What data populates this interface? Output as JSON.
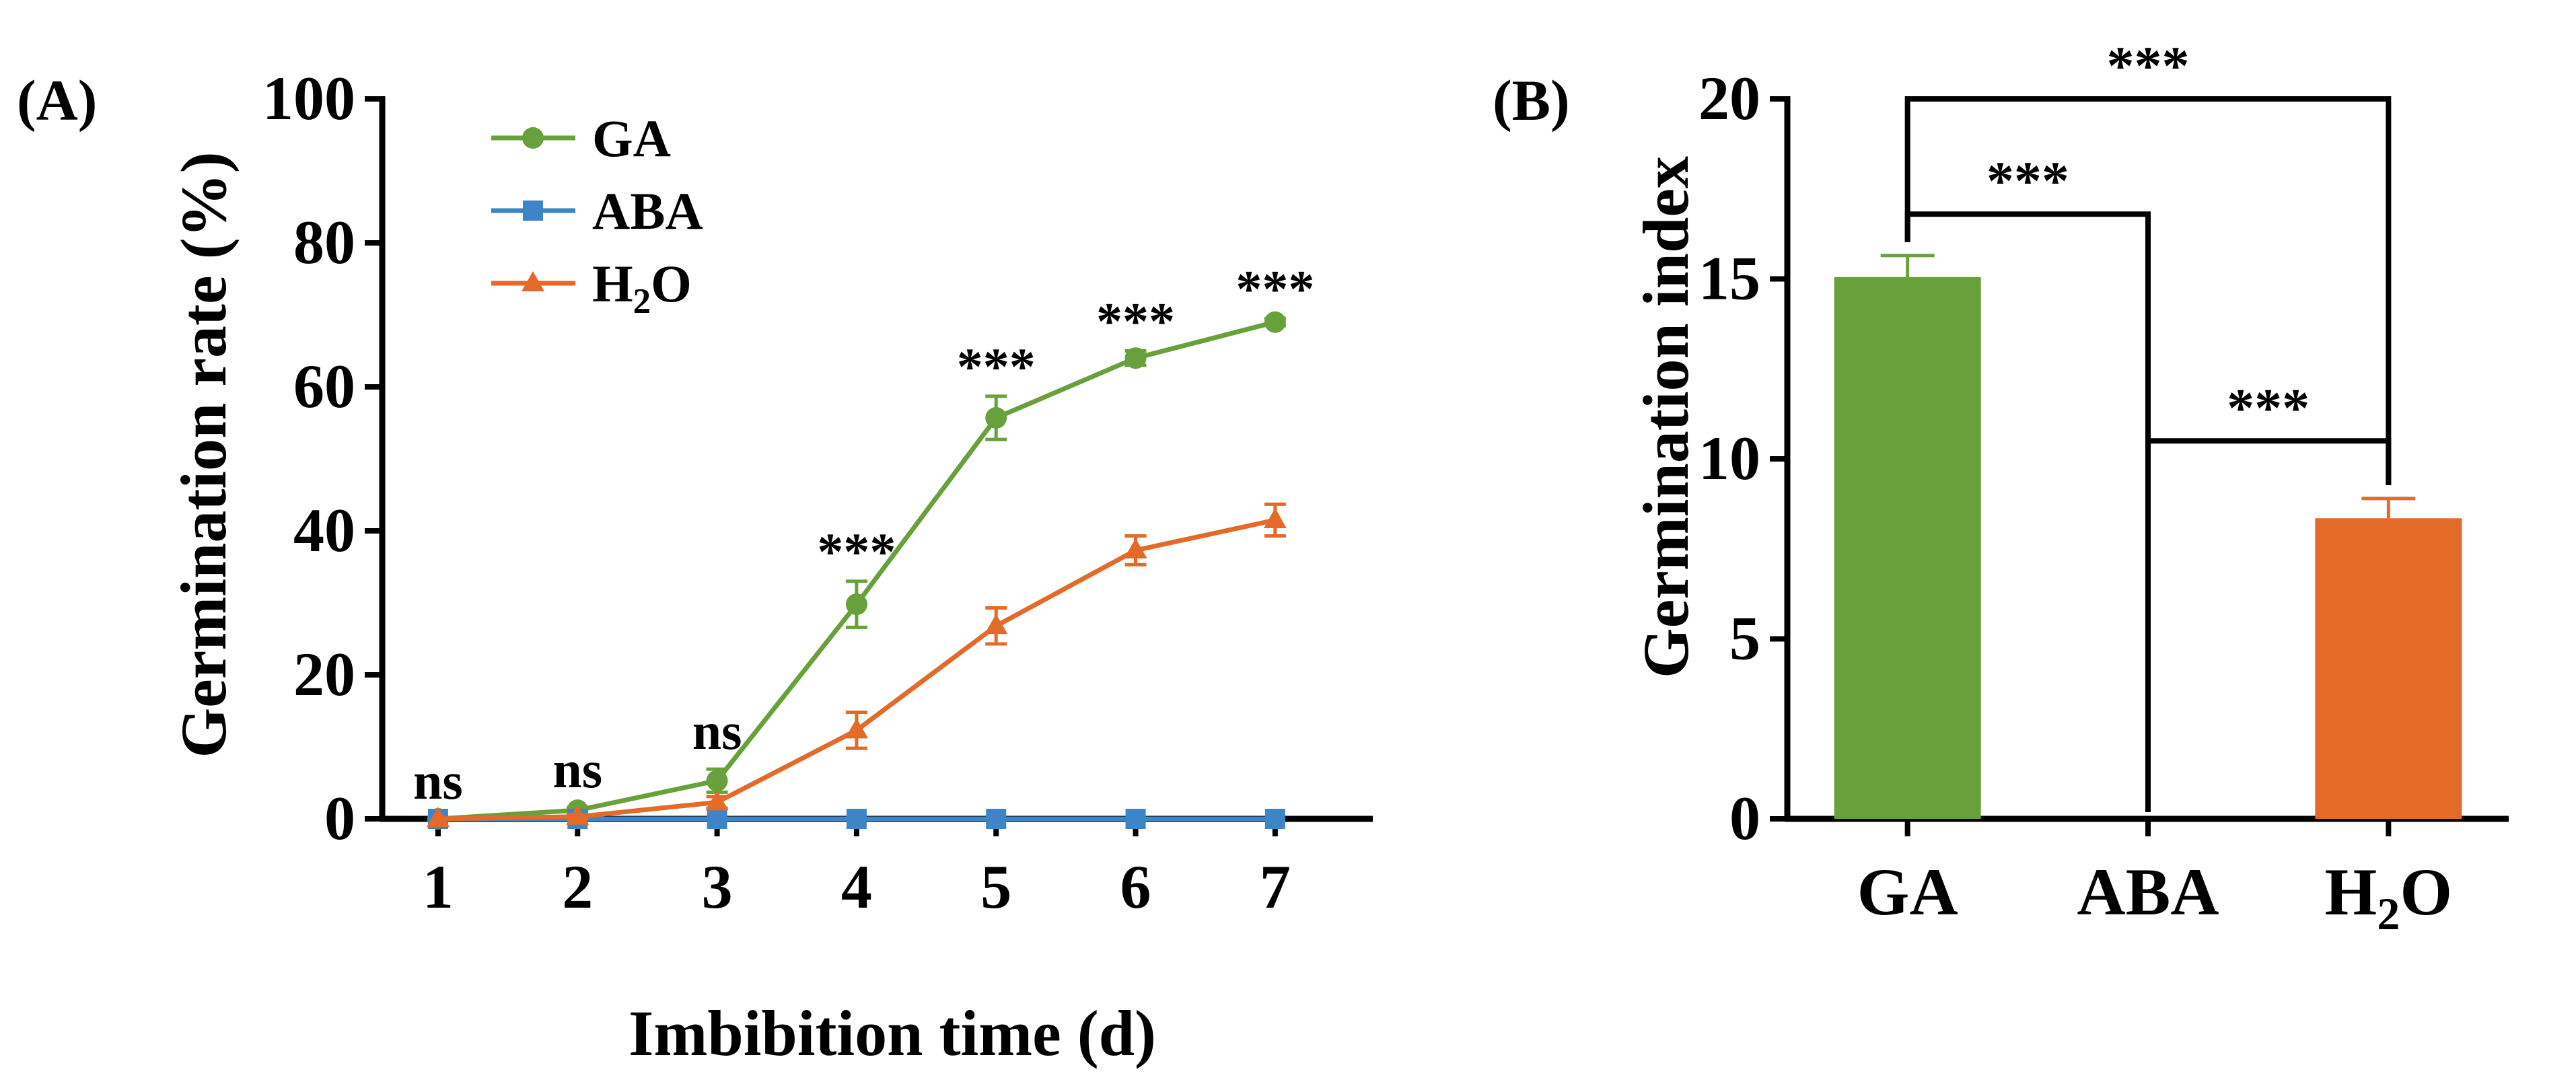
{
  "panels": {
    "a_label": "(A)",
    "b_label": "(B)"
  },
  "colors": {
    "GA": "#68a03c",
    "ABA": "#3d85c6",
    "H2O": "#e36a28",
    "axis": "#000000"
  },
  "chart_data": [
    {
      "type": "line",
      "title": "",
      "xlabel": "Imbibition time (d)",
      "ylabel": "Germination rate (%)",
      "x": [
        1,
        2,
        3,
        4,
        5,
        6,
        7
      ],
      "xlim": [
        0.6,
        7.7
      ],
      "ylim": [
        0,
        100
      ],
      "yticks": [
        0,
        20,
        40,
        60,
        80,
        100
      ],
      "grid": false,
      "legend_position": "top-left",
      "series": [
        {
          "name": "GA",
          "marker": "circle",
          "values": [
            0,
            1.2,
            5.3,
            29.8,
            55.7,
            64.0,
            69.0
          ],
          "errors": [
            0,
            0.4,
            1.6,
            3.2,
            3.0,
            1.0,
            0.5
          ]
        },
        {
          "name": "ABA",
          "marker": "square",
          "values": [
            0,
            0,
            0,
            0,
            0,
            0,
            0
          ],
          "errors": [
            0,
            0,
            0,
            0,
            0,
            0,
            0
          ]
        },
        {
          "name": "H2O",
          "marker": "triangle",
          "values": [
            0,
            0.3,
            2.3,
            12.3,
            26.8,
            37.3,
            41.5
          ],
          "errors": [
            0,
            0.3,
            0.8,
            2.5,
            2.5,
            2.0,
            2.2
          ]
        }
      ],
      "annotations": [
        "ns",
        "ns",
        "ns",
        "***",
        "***",
        "***",
        "***"
      ]
    },
    {
      "type": "bar",
      "title": "",
      "xlabel": "",
      "ylabel": "Germination index",
      "categories": [
        "GA",
        "ABA",
        "H2O"
      ],
      "values": [
        15.05,
        0,
        8.35
      ],
      "errors": [
        0.6,
        0,
        0.55
      ],
      "ylim": [
        0,
        20
      ],
      "yticks": [
        0,
        5,
        10,
        15,
        20
      ],
      "grid": false,
      "significance": [
        {
          "pair": [
            "GA",
            "H2O"
          ],
          "label": "***"
        },
        {
          "pair": [
            "GA",
            "ABA"
          ],
          "label": "***"
        },
        {
          "pair": [
            "ABA",
            "H2O"
          ],
          "label": "***"
        }
      ]
    }
  ]
}
